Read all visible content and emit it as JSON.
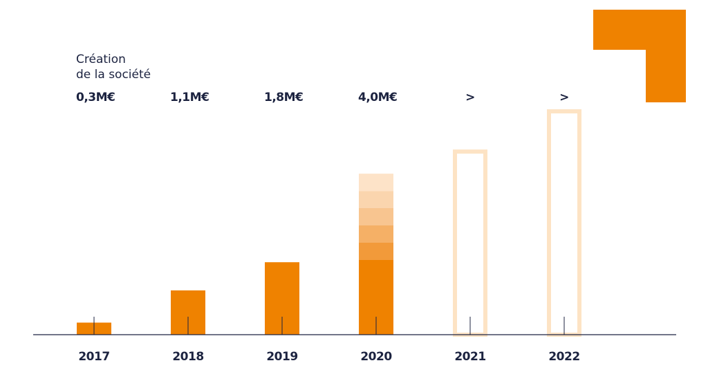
{
  "chart_data": {
    "type": "bar",
    "annotation": [
      "Création",
      "de la société"
    ],
    "categories": [
      "2017",
      "2018",
      "2019",
      "2020",
      "2021",
      "2022"
    ],
    "values": [
      0.3,
      1.1,
      1.8,
      4.0,
      4.6,
      5.6
    ],
    "value_labels": [
      "0,3M€",
      "1,1M€",
      "1,8M€",
      "4,0M€",
      ">",
      ">"
    ],
    "colors": [
      "#ef8200",
      "#ef8200",
      "#ef8200",
      "#ef8200",
      "#fde3c4",
      "#fde3c4"
    ],
    "outline": [
      false,
      false,
      false,
      false,
      true,
      true
    ],
    "fade": [
      false,
      false,
      false,
      true,
      false,
      false
    ],
    "ylim": [
      0,
      5.6
    ]
  }
}
